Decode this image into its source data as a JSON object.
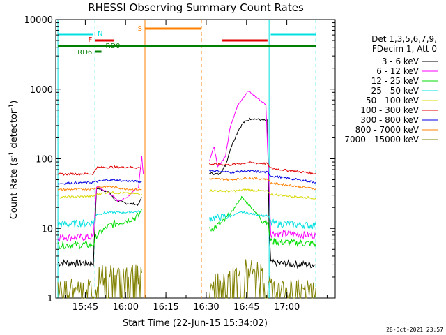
{
  "chart_data": {
    "type": "line",
    "title": "RHESSI Observing Summary Count Rates",
    "xlabel": "Start Time (22-Jun-15 15:34:02)",
    "ylabel_main": "Count Rate (s",
    "ylabel_sup1": "-1",
    "ylabel_mid": " detector",
    "ylabel_sup2": "-1",
    "ylabel_end": ")",
    "ylog": true,
    "ylim": [
      1,
      10000
    ],
    "xlim_minutes": [
      15.5667,
      17.3
    ],
    "x_ticks": [
      {
        "value": 15.75,
        "label": "15:45"
      },
      {
        "value": 16.0,
        "label": "16:00"
      },
      {
        "value": 16.25,
        "label": "16:15"
      },
      {
        "value": 16.5,
        "label": "16:30"
      },
      {
        "value": 16.75,
        "label": "16:45"
      },
      {
        "value": 17.0,
        "label": "17:00"
      }
    ],
    "y_ticks": [
      {
        "value": 1,
        "label": "1"
      },
      {
        "value": 10,
        "label": "10"
      },
      {
        "value": 100,
        "label": "100"
      },
      {
        "value": 1000,
        "label": "1000"
      },
      {
        "value": 10000,
        "label": "10000"
      }
    ],
    "legend_header": [
      "Det 1,3,5,6,7,9,",
      "FDecim 1, Att 0"
    ],
    "series": [
      {
        "name": "3 - 6 keV",
        "color": "#000000",
        "segments": [
          [
            [
              15.58,
              3.2
            ],
            [
              15.8,
              3.2
            ],
            [
              15.82,
              38
            ],
            [
              15.9,
              33
            ],
            [
              15.93,
              26
            ],
            [
              16.0,
              23
            ],
            [
              16.08,
              22
            ],
            [
              16.1,
              28
            ]
          ],
          [
            [
              16.52,
              62
            ],
            [
              16.58,
              60
            ],
            [
              16.62,
              80
            ],
            [
              16.65,
              140
            ],
            [
              16.7,
              260
            ],
            [
              16.73,
              330
            ],
            [
              16.78,
              380
            ],
            [
              16.88,
              350
            ],
            [
              16.89,
              10
            ],
            [
              16.9,
              3.2
            ],
            [
              17.18,
              3.0
            ]
          ]
        ]
      },
      {
        "name": "6 - 12 keV",
        "color": "#ff00ff",
        "segments": [
          [
            [
              15.58,
              7.5
            ],
            [
              15.8,
              7.5
            ],
            [
              15.82,
              40
            ],
            [
              15.9,
              32
            ],
            [
              15.95,
              25
            ],
            [
              16.0,
              27
            ],
            [
              16.08,
              40
            ],
            [
              16.1,
              110
            ],
            [
              16.11,
              60
            ]
          ],
          [
            [
              16.52,
              95
            ],
            [
              16.55,
              150
            ],
            [
              16.57,
              75
            ],
            [
              16.62,
              110
            ],
            [
              16.65,
              300
            ],
            [
              16.7,
              620
            ],
            [
              16.76,
              940
            ],
            [
              16.8,
              800
            ],
            [
              16.87,
              600
            ],
            [
              16.89,
              40
            ],
            [
              16.9,
              8.5
            ],
            [
              17.18,
              8.0
            ]
          ]
        ]
      },
      {
        "name": "12 - 25 keV",
        "color": "#00dd00",
        "segments": [
          [
            [
              15.58,
              5.8
            ],
            [
              15.8,
              5.8
            ],
            [
              15.82,
              8
            ],
            [
              15.9,
              11
            ],
            [
              16.0,
              13
            ],
            [
              16.08,
              15
            ],
            [
              16.1,
              19
            ]
          ],
          [
            [
              16.52,
              9.5
            ],
            [
              16.6,
              12
            ],
            [
              16.65,
              16
            ],
            [
              16.7,
              24
            ],
            [
              16.72,
              28
            ],
            [
              16.78,
              20
            ],
            [
              16.85,
              13
            ],
            [
              16.88,
              13
            ],
            [
              16.9,
              6.5
            ],
            [
              17.18,
              6.0
            ]
          ]
        ]
      },
      {
        "name": "25 - 50 keV",
        "color": "#00e0e0",
        "segments": [
          [
            [
              15.58,
              11.5
            ],
            [
              15.8,
              12
            ],
            [
              15.82,
              16
            ],
            [
              15.9,
              17
            ],
            [
              16.0,
              17
            ],
            [
              16.1,
              17.5
            ]
          ],
          [
            [
              16.52,
              14
            ],
            [
              16.6,
              14.5
            ],
            [
              16.65,
              15
            ],
            [
              16.72,
              17
            ],
            [
              16.8,
              16
            ],
            [
              16.88,
              15
            ],
            [
              16.9,
              12
            ],
            [
              17.18,
              11
            ]
          ]
        ]
      },
      {
        "name": "50 - 100 keV",
        "color": "#d8d800",
        "segments": [
          [
            [
              15.58,
              28
            ],
            [
              15.8,
              29
            ],
            [
              15.82,
              31
            ],
            [
              15.9,
              33
            ],
            [
              16.0,
              32
            ],
            [
              16.1,
              31
            ]
          ],
          [
            [
              16.52,
              35
            ],
            [
              16.65,
              34
            ],
            [
              16.75,
              36
            ],
            [
              16.88,
              34
            ],
            [
              16.9,
              31
            ],
            [
              17.18,
              27
            ]
          ]
        ]
      },
      {
        "name": "100 - 300 keV",
        "color": "#e00000",
        "segments": [
          [
            [
              15.58,
              60
            ],
            [
              15.8,
              61
            ],
            [
              15.82,
              75
            ],
            [
              15.9,
              76
            ],
            [
              16.0,
              76
            ],
            [
              16.1,
              74
            ]
          ],
          [
            [
              16.52,
              84
            ],
            [
              16.65,
              82
            ],
            [
              16.75,
              88
            ],
            [
              16.88,
              85
            ],
            [
              16.9,
              73
            ],
            [
              17.18,
              61
            ]
          ]
        ]
      },
      {
        "name": "300 - 800 keV",
        "color": "#0000e0",
        "segments": [
          [
            [
              15.58,
              44
            ],
            [
              15.8,
              46
            ],
            [
              15.82,
              47
            ],
            [
              15.9,
              50
            ],
            [
              16.0,
              48
            ],
            [
              16.1,
              47
            ]
          ],
          [
            [
              16.52,
              68
            ],
            [
              16.65,
              64
            ],
            [
              16.75,
              67
            ],
            [
              16.88,
              64
            ],
            [
              16.9,
              57
            ],
            [
              17.18,
              46
            ]
          ]
        ]
      },
      {
        "name": "800 - 7000 keV",
        "color": "#ff8000",
        "segments": [
          [
            [
              15.58,
              36
            ],
            [
              15.8,
              37
            ],
            [
              15.82,
              39
            ],
            [
              15.9,
              40
            ],
            [
              16.0,
              37
            ],
            [
              16.1,
              36
            ]
          ],
          [
            [
              16.52,
              52
            ],
            [
              16.65,
              50
            ],
            [
              16.75,
              53
            ],
            [
              16.88,
              51
            ],
            [
              16.9,
              45
            ],
            [
              17.18,
              37
            ]
          ]
        ]
      },
      {
        "name": "7000 - 15000 keV",
        "color": "#808000",
        "segments": [
          [
            [
              15.58,
              1.4
            ],
            [
              15.8,
              1.4
            ],
            [
              15.82,
              2.2
            ],
            [
              16.1,
              2.3
            ]
          ],
          [
            [
              16.52,
              1.5
            ],
            [
              16.62,
              2.0
            ],
            [
              16.75,
              2.8
            ],
            [
              16.88,
              2.2
            ],
            [
              16.9,
              1.4
            ],
            [
              17.18,
              1.4
            ]
          ]
        ]
      }
    ],
    "annotations": {
      "bars": [
        {
          "label": "N",
          "color": "#00e0e0",
          "x_start": 15.58,
          "x_end": 15.8,
          "x_start2": 16.9,
          "x_end2": 17.18
        },
        {
          "label": "F",
          "color": "#e00000",
          "x_start": 15.81,
          "x_end": 15.93,
          "x_start2": 16.6,
          "x_end2": 16.88
        },
        {
          "label": "S",
          "color": "#ff8000",
          "x_start": 16.12,
          "x_end": 16.47
        },
        {
          "label": "RD0",
          "color": "#008000",
          "x_start": 15.58,
          "x_end": 17.18
        },
        {
          "label": "RD6",
          "color": "#008000",
          "x_start": 15.81,
          "x_end": 15.85
        }
      ],
      "vlines": [
        {
          "x": 15.58,
          "color": "#00e0e0",
          "style": "solid"
        },
        {
          "x": 15.81,
          "color": "#00e0e0",
          "style": "dashed"
        },
        {
          "x": 16.12,
          "color": "#ff8000",
          "style": "solid"
        },
        {
          "x": 16.47,
          "color": "#ff8000",
          "style": "dashed"
        },
        {
          "x": 16.89,
          "color": "#00e0e0",
          "style": "solid"
        },
        {
          "x": 17.18,
          "color": "#00e0e0",
          "style": "dashed"
        }
      ]
    },
    "footer_date": "28-Oct-2021 23:57"
  }
}
